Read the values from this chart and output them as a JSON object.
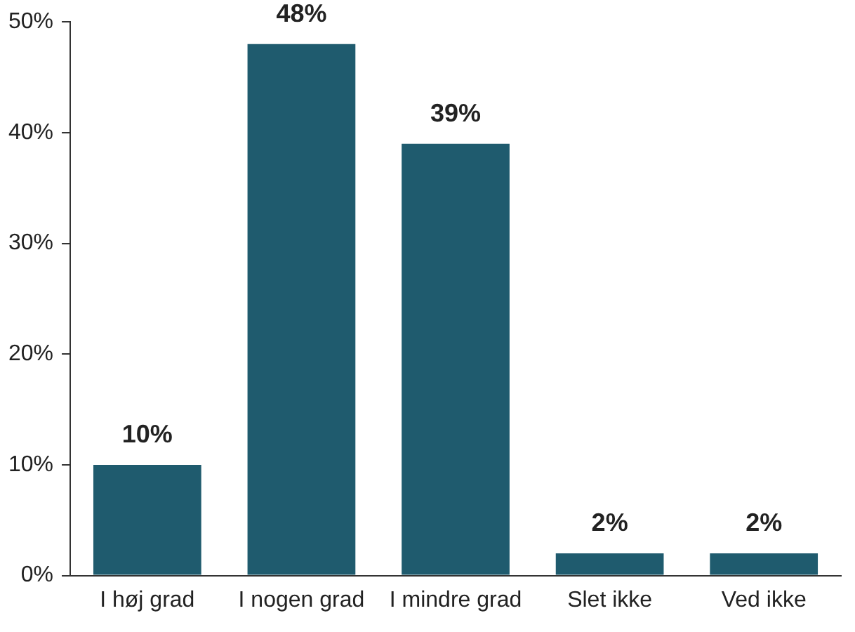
{
  "chart_data": {
    "type": "bar",
    "categories": [
      "I høj grad",
      "I nogen grad",
      "I mindre grad",
      "Slet ikke",
      "Ved ikke"
    ],
    "values": [
      10,
      48,
      39,
      2,
      2
    ],
    "value_labels": [
      "10%",
      "48%",
      "39%",
      "2%",
      "2%"
    ],
    "color": "#1f5b6e",
    "ylim": [
      0,
      50
    ],
    "yticks": [
      {
        "value": 0,
        "label": "0%"
      },
      {
        "value": 10,
        "label": "10%"
      },
      {
        "value": 20,
        "label": "20%"
      },
      {
        "value": 30,
        "label": "30%"
      },
      {
        "value": 40,
        "label": "40%"
      },
      {
        "value": 50,
        "label": "50%"
      }
    ],
    "grid": false,
    "legend": false
  }
}
